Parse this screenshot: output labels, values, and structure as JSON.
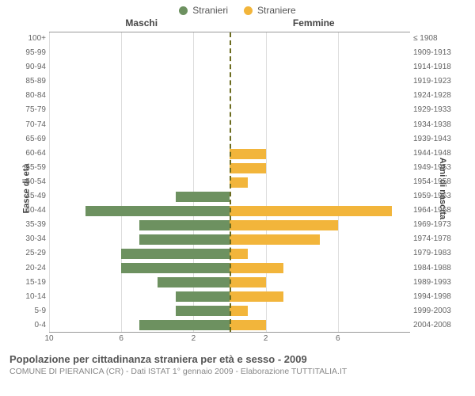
{
  "legend": {
    "male": {
      "label": "Stranieri",
      "color": "#6d9160"
    },
    "female": {
      "label": "Straniere",
      "color": "#f2b53b"
    }
  },
  "headers": {
    "male": "Maschi",
    "female": "Femmine"
  },
  "axis_titles": {
    "left": "Fasce di età",
    "right": "Anni di nascita"
  },
  "pyramid": {
    "type": "population-pyramid",
    "male_color": "#6d9160",
    "female_color": "#f2b53b",
    "center_dash_color": "#6b6b1e",
    "grid_color": "#dddddd",
    "background_color": "#ffffff",
    "xmax": 10,
    "xticks_left": [
      10,
      6,
      2
    ],
    "xticks_right": [
      2,
      6
    ],
    "rows": [
      {
        "age": "100+",
        "male": 0,
        "female": 0,
        "birth": "≤ 1908"
      },
      {
        "age": "95-99",
        "male": 0,
        "female": 0,
        "birth": "1909-1913"
      },
      {
        "age": "90-94",
        "male": 0,
        "female": 0,
        "birth": "1914-1918"
      },
      {
        "age": "85-89",
        "male": 0,
        "female": 0,
        "birth": "1919-1923"
      },
      {
        "age": "80-84",
        "male": 0,
        "female": 0,
        "birth": "1924-1928"
      },
      {
        "age": "75-79",
        "male": 0,
        "female": 0,
        "birth": "1929-1933"
      },
      {
        "age": "70-74",
        "male": 0,
        "female": 0,
        "birth": "1934-1938"
      },
      {
        "age": "65-69",
        "male": 0,
        "female": 0,
        "birth": "1939-1943"
      },
      {
        "age": "60-64",
        "male": 0,
        "female": 2,
        "birth": "1944-1948"
      },
      {
        "age": "55-59",
        "male": 0,
        "female": 2,
        "birth": "1949-1953"
      },
      {
        "age": "50-54",
        "male": 0,
        "female": 1,
        "birth": "1954-1958"
      },
      {
        "age": "45-49",
        "male": 3,
        "female": 0,
        "birth": "1959-1963"
      },
      {
        "age": "40-44",
        "male": 8,
        "female": 9,
        "birth": "1964-1968"
      },
      {
        "age": "35-39",
        "male": 5,
        "female": 6,
        "birth": "1969-1973"
      },
      {
        "age": "30-34",
        "male": 5,
        "female": 5,
        "birth": "1974-1978"
      },
      {
        "age": "25-29",
        "male": 6,
        "female": 1,
        "birth": "1979-1983"
      },
      {
        "age": "20-24",
        "male": 6,
        "female": 3,
        "birth": "1984-1988"
      },
      {
        "age": "15-19",
        "male": 4,
        "female": 2,
        "birth": "1989-1993"
      },
      {
        "age": "10-14",
        "male": 3,
        "female": 3,
        "birth": "1994-1998"
      },
      {
        "age": "5-9",
        "male": 3,
        "female": 1,
        "birth": "1999-2003"
      },
      {
        "age": "0-4",
        "male": 5,
        "female": 2,
        "birth": "2004-2008"
      }
    ]
  },
  "footer": {
    "title": "Popolazione per cittadinanza straniera per età e sesso - 2009",
    "subtitle": "COMUNE DI PIERANICA (CR) - Dati ISTAT 1° gennaio 2009 - Elaborazione TUTTITALIA.IT"
  }
}
